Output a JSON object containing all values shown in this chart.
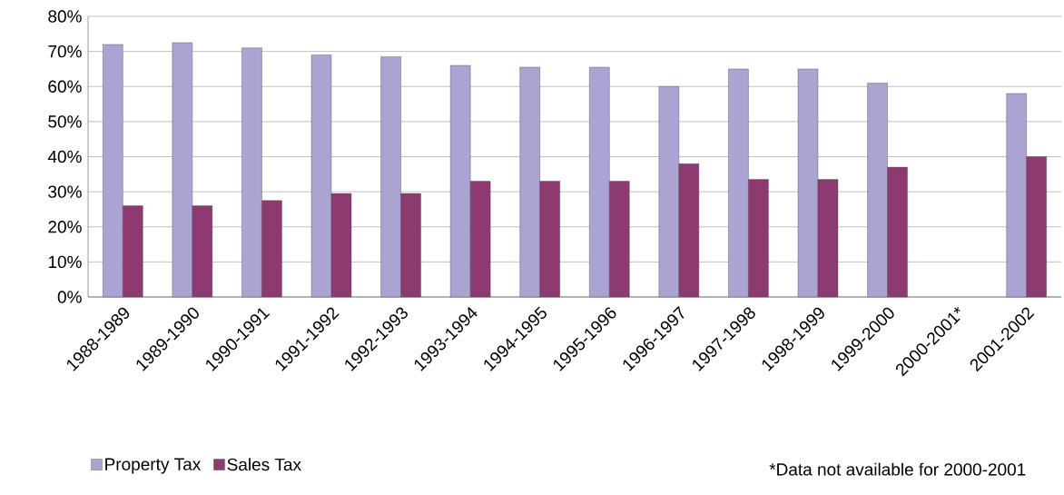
{
  "chart_data": {
    "type": "bar",
    "categories": [
      "1988-1989",
      "1989-1990",
      "1990-1991",
      "1991-1992",
      "1992-1993",
      "1993-1994",
      "1994-1995",
      "1995-1996",
      "1996-1997",
      "1997-1998",
      "1998-1999",
      "1999-2000",
      "2000-2001*",
      "2001-2002"
    ],
    "series": [
      {
        "name": "Property Tax",
        "color": "#aba3d1",
        "values": [
          72,
          72.5,
          71,
          69,
          68.5,
          66,
          65.5,
          65.5,
          60,
          65,
          65,
          61,
          null,
          58
        ]
      },
      {
        "name": "Sales Tax",
        "color": "#8c3a70",
        "values": [
          26,
          26,
          27.5,
          29.5,
          29.5,
          33,
          33,
          33,
          38,
          33.5,
          33.5,
          37,
          null,
          40
        ]
      }
    ],
    "ylim": [
      0,
      80
    ],
    "yticks": [
      {
        "value": 0,
        "label": "0%"
      },
      {
        "value": 10,
        "label": "10%"
      },
      {
        "value": 20,
        "label": "20%"
      },
      {
        "value": 30,
        "label": "30%"
      },
      {
        "value": 40,
        "label": "40%"
      },
      {
        "value": 50,
        "label": "50%"
      },
      {
        "value": 60,
        "label": "60%"
      },
      {
        "value": 70,
        "label": "70%"
      },
      {
        "value": 80,
        "label": "80%"
      }
    ],
    "grid": "y",
    "legend": "bottom left",
    "annotations": [
      "*Data not available for 2000-2001"
    ]
  }
}
